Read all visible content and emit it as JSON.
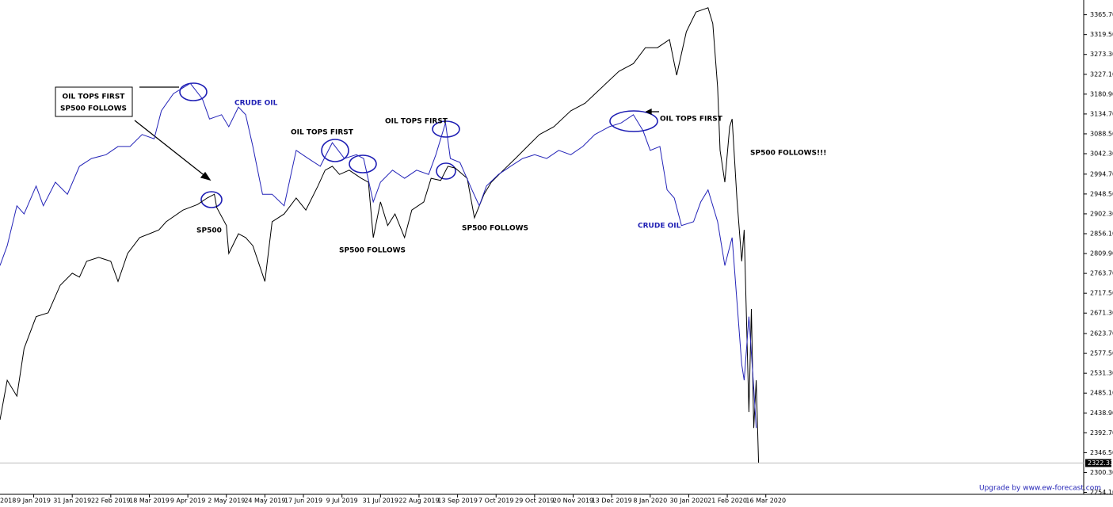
{
  "chart_data": {
    "type": "line",
    "xlim": [
      0,
      450
    ],
    "ylim": [
      2220,
      3400
    ],
    "xticks": [
      {
        "value": -2,
        "label": "2018"
      },
      {
        "value": 14,
        "label": "9 Jan 2019"
      },
      {
        "value": 30,
        "label": "31 Jan 2019"
      },
      {
        "value": 46,
        "label": "22 Feb 2019"
      },
      {
        "value": 62,
        "label": "18 Mar 2019"
      },
      {
        "value": 78,
        "label": "9 Apr 2019"
      },
      {
        "value": 94,
        "label": "2 May 2019"
      },
      {
        "value": 110,
        "label": "24 May 2019"
      },
      {
        "value": 126,
        "label": "17 Jun 2019"
      },
      {
        "value": 142,
        "label": "9 Jul 2019"
      },
      {
        "value": 158,
        "label": "31 Jul 2019"
      },
      {
        "value": 174,
        "label": "22 Aug 2019"
      },
      {
        "value": 190,
        "label": "13 Sep 2019"
      },
      {
        "value": 206,
        "label": "7 Oct 2019"
      },
      {
        "value": 222,
        "label": "29 Oct 2019"
      },
      {
        "value": 238,
        "label": "20 Nov 2019"
      },
      {
        "value": 254,
        "label": "13 Dec 2019"
      },
      {
        "value": 270,
        "label": "8 Jan 2020"
      },
      {
        "value": 286,
        "label": "30 Jan 2020"
      },
      {
        "value": 302,
        "label": "21 Feb 2020"
      },
      {
        "value": 318,
        "label": "16 Mar 2020"
      }
    ],
    "yticks": [
      {
        "value": 2254.1,
        "label": "2254.10"
      },
      {
        "value": 2300.3,
        "label": "2300.30"
      },
      {
        "value": 2346.5,
        "label": "2346.50"
      },
      {
        "value": 2392.7,
        "label": "2392.70"
      },
      {
        "value": 2438.9,
        "label": "2438.90"
      },
      {
        "value": 2485.1,
        "label": "2485.10"
      },
      {
        "value": 2531.3,
        "label": "2531.30"
      },
      {
        "value": 2577.5,
        "label": "2577.50"
      },
      {
        "value": 2623.7,
        "label": "2623.70"
      },
      {
        "value": 2671.3,
        "label": "2671.30"
      },
      {
        "value": 2717.5,
        "label": "2717.50"
      },
      {
        "value": 2763.7,
        "label": "2763.70"
      },
      {
        "value": 2809.9,
        "label": "2809.90"
      },
      {
        "value": 2856.1,
        "label": "2856.10"
      },
      {
        "value": 2902.3,
        "label": "2902.30"
      },
      {
        "value": 2948.5,
        "label": "2948.50"
      },
      {
        "value": 2994.7,
        "label": "2994.70"
      },
      {
        "value": 3042.3,
        "label": "3042.30"
      },
      {
        "value": 3088.5,
        "label": "3088.50"
      },
      {
        "value": 3134.7,
        "label": "3134.70"
      },
      {
        "value": 3180.9,
        "label": "3180.90"
      },
      {
        "value": 3227.1,
        "label": "3227.10"
      },
      {
        "value": 3273.3,
        "label": "3273.30"
      },
      {
        "value": 3319.5,
        "label": "3319.50"
      },
      {
        "value": 3365.7,
        "label": "3365.70"
      }
    ],
    "last_price": {
      "value": 2322.33,
      "label": "2322.33"
    },
    "series": [
      {
        "color": "#000000",
        "x": [
          0,
          3,
          7,
          10,
          15,
          20,
          25,
          30,
          33,
          36,
          41,
          46,
          49,
          53,
          58,
          62,
          66,
          69,
          76,
          82,
          86,
          89,
          90,
          94,
          95,
          99,
          102,
          105,
          110,
          113,
          118,
          123,
          127,
          132,
          135,
          138,
          141,
          145,
          150,
          153,
          155,
          158,
          161,
          164,
          168,
          171,
          176,
          179,
          183,
          186,
          189,
          194,
          197,
          201,
          204,
          209,
          214,
          219,
          224,
          230,
          237,
          243,
          250,
          257,
          263,
          268,
          273,
          278,
          281,
          285,
          289,
          294,
          296,
          298,
          299,
          301,
          303,
          304,
          306,
          308,
          309,
          311,
          312,
          313,
          314,
          315
        ],
        "values": [
          2423,
          2515,
          2478,
          2589,
          2663,
          2672,
          2736,
          2764,
          2755,
          2792,
          2801,
          2792,
          2745,
          2810,
          2847,
          2856,
          2865,
          2884,
          2911,
          2924,
          2939,
          2948,
          2917,
          2875,
          2810,
          2856,
          2847,
          2828,
          2745,
          2884,
          2902,
          2939,
          2911,
          2967,
          3004,
          3013,
          2994,
          3004,
          2985,
          2976,
          2847,
          2930,
          2875,
          2902,
          2847,
          2911,
          2930,
          2985,
          2980,
          3013,
          3009,
          2985,
          2893,
          2948,
          2976,
          3004,
          3031,
          3059,
          3087,
          3105,
          3142,
          3160,
          3197,
          3234,
          3252,
          3289,
          3289,
          3308,
          3225,
          3326,
          3372,
          3382,
          3345,
          3197,
          3050,
          2976,
          3105,
          3123,
          2939,
          2792,
          2865,
          2441,
          2681,
          2404,
          2515,
          2322
        ]
      },
      {
        "color": "#2424b8",
        "x": [
          0,
          3,
          7,
          10,
          15,
          18,
          23,
          28,
          33,
          38,
          44,
          49,
          54,
          59,
          64,
          67,
          72,
          79,
          84,
          87,
          92,
          95,
          99,
          102,
          105,
          109,
          113,
          118,
          123,
          128,
          133,
          138,
          143,
          148,
          151,
          155,
          158,
          163,
          168,
          173,
          178,
          181,
          185,
          187,
          191,
          196,
          199,
          202,
          207,
          212,
          217,
          222,
          227,
          232,
          237,
          242,
          247,
          253,
          258,
          263,
          267,
          270,
          274,
          277,
          280,
          283,
          288,
          291,
          294,
          298,
          301,
          304,
          308,
          309,
          311,
          313,
          314
        ],
        "values": [
          2782,
          2828,
          2921,
          2902,
          2967,
          2921,
          2976,
          2948,
          3013,
          3031,
          3040,
          3059,
          3059,
          3087,
          3077,
          3142,
          3182,
          3206,
          3170,
          3123,
          3133,
          3105,
          3151,
          3133,
          3059,
          2948,
          2948,
          2921,
          3050,
          3031,
          3013,
          3068,
          3031,
          3040,
          3031,
          2930,
          2976,
          3004,
          2985,
          3004,
          2994,
          3040,
          3114,
          3031,
          3022,
          2958,
          2921,
          2967,
          2994,
          3013,
          3031,
          3040,
          3031,
          3050,
          3040,
          3059,
          3087,
          3105,
          3114,
          3133,
          3096,
          3050,
          3059,
          2958,
          2939,
          2875,
          2884,
          2930,
          2958,
          2884,
          2782,
          2847,
          2552,
          2515,
          2663,
          2497,
          2404
        ]
      }
    ],
    "annotations": [
      "OIL TOPS FIRST",
      "SP500 FOLLOWS",
      "CRUDE OIL",
      "OIL TOPS FIRST",
      "OIL TOPS FIRST",
      "OIL TOPS FIRST",
      "SP500",
      "SP500 FOLLOWS",
      "SP500 FOLLOWS",
      "CRUDE OIL",
      "SP500 FOLLOWS!!!"
    ],
    "footer": "Upgrade by www.ew-forecast.com"
  }
}
